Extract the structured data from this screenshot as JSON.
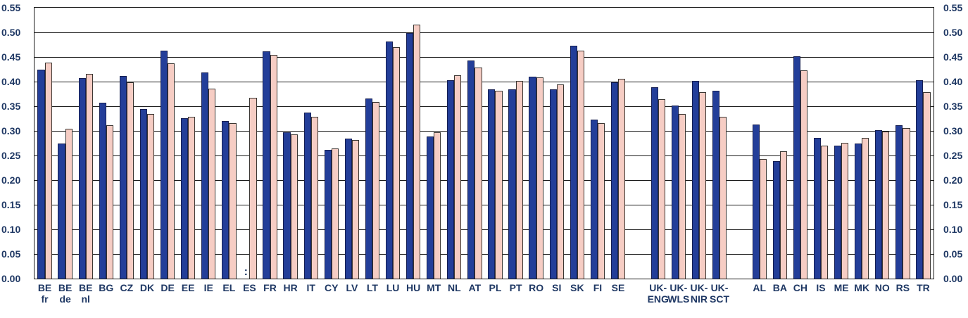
{
  "chart_data": {
    "type": "bar",
    "title": "",
    "xlabel": "",
    "ylabel": "",
    "ylim": [
      0,
      0.55
    ],
    "ytick_step": 0.05,
    "ytick_labels": [
      "0.00",
      "0.05",
      "0.10",
      "0.15",
      "0.20",
      "0.25",
      "0.30",
      "0.35",
      "0.40",
      "0.45",
      "0.50",
      "0.55"
    ],
    "grid": true,
    "legend_position": "none",
    "dual_y_axis": true,
    "missing_value_marker": ":",
    "colors": {
      "series1_fill": "#233E99",
      "series1_border": "#141E52",
      "series2_fill": "#F6CDC4",
      "series2_border": "#3a3632",
      "axis_text": "#1F3864",
      "gridline": "#1a1a1a"
    },
    "categories": [
      "BE fr",
      "BE de",
      "BE nl",
      "BG",
      "CZ",
      "DK",
      "DE",
      "EE",
      "IE",
      "EL",
      "ES",
      "FR",
      "HR",
      "IT",
      "CY",
      "LV",
      "LT",
      "LU",
      "HU",
      "MT",
      "NL",
      "AT",
      "PL",
      "PT",
      "RO",
      "SI",
      "SK",
      "FI",
      "SE",
      "UK-ENG",
      "UK-WLS",
      "UK-NIR",
      "UK-SCT",
      "AL",
      "BA",
      "CH",
      "IS",
      "ME",
      "MK",
      "NO",
      "RS",
      "TR"
    ],
    "category_label_lines": [
      [
        "BE",
        "fr"
      ],
      [
        "BE",
        "de"
      ],
      [
        "BE",
        "nl"
      ],
      [
        "BG"
      ],
      [
        "CZ"
      ],
      [
        "DK"
      ],
      [
        "DE"
      ],
      [
        "EE"
      ],
      [
        "IE"
      ],
      [
        "EL"
      ],
      [
        "ES"
      ],
      [
        "FR"
      ],
      [
        "HR"
      ],
      [
        "IT"
      ],
      [
        "CY"
      ],
      [
        "LV"
      ],
      [
        "LT"
      ],
      [
        "LU"
      ],
      [
        "HU"
      ],
      [
        "MT"
      ],
      [
        "NL"
      ],
      [
        "AT"
      ],
      [
        "PL"
      ],
      [
        "PT"
      ],
      [
        "RO"
      ],
      [
        "SI"
      ],
      [
        "SK"
      ],
      [
        "FI"
      ],
      [
        "SE"
      ],
      [
        "UK-",
        "ENG"
      ],
      [
        "UK-",
        "WLS"
      ],
      [
        "UK-",
        "NIR"
      ],
      [
        "UK-",
        "SCT"
      ],
      [
        "AL"
      ],
      [
        "BA"
      ],
      [
        "CH"
      ],
      [
        "IS"
      ],
      [
        "ME"
      ],
      [
        "MK"
      ],
      [
        "NO"
      ],
      [
        "RS"
      ],
      [
        "TR"
      ]
    ],
    "series": [
      {
        "name": "dark-blue-series",
        "values": [
          0.424,
          0.274,
          0.407,
          0.357,
          0.411,
          0.345,
          0.463,
          0.326,
          0.419,
          0.32,
          null,
          0.462,
          0.297,
          0.337,
          0.262,
          0.284,
          0.366,
          0.482,
          0.498,
          0.288,
          0.403,
          0.443,
          0.385,
          0.384,
          0.41,
          0.384,
          0.473,
          0.323,
          0.398,
          0.388,
          0.351,
          0.402,
          0.381,
          0.313,
          0.238,
          0.452,
          0.286,
          0.27,
          0.274,
          0.302,
          0.311,
          0.403
        ]
      },
      {
        "name": "pink-series",
        "values": [
          0.438,
          0.304,
          0.416,
          0.311,
          0.398,
          0.334,
          0.437,
          0.329,
          0.386,
          0.316,
          0.367,
          0.455,
          0.293,
          0.329,
          0.265,
          0.281,
          0.359,
          0.47,
          0.516,
          0.297,
          0.413,
          0.428,
          0.382,
          0.402,
          0.408,
          0.395,
          0.463,
          0.316,
          0.406,
          0.365,
          0.334,
          0.379,
          0.328,
          0.243,
          0.259,
          0.423,
          0.27,
          0.276,
          0.286,
          0.298,
          0.306,
          0.379
        ]
      }
    ],
    "group_gaps_after": [
      "SE",
      "UK-SCT"
    ],
    "gap_extra_slots": 0.95
  }
}
